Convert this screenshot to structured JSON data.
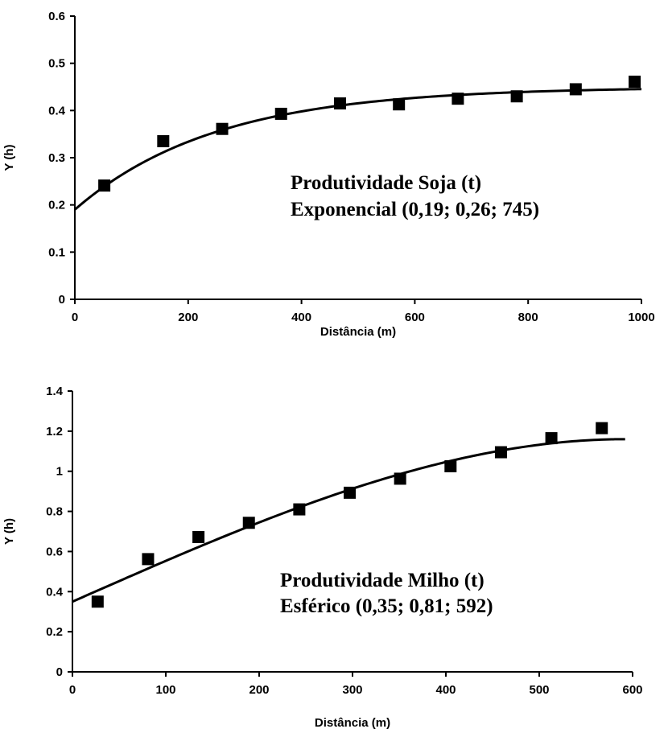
{
  "chart_data": [
    {
      "type": "scatter",
      "xlabel": "Distância (m)",
      "ylabel": "Y (h)",
      "xlim": [
        0,
        1000
      ],
      "ylim": [
        0,
        0.6
      ],
      "xticks": [
        "0",
        "200",
        "400",
        "600",
        "800",
        "1000"
      ],
      "yticks": [
        "0",
        "0.1",
        "0.2",
        "0.3",
        "0.4",
        "0.5",
        "0.6"
      ],
      "grid": false,
      "annotation": [
        "Produtividade Soja (t)",
        "Exponencial (0,19; 0,26; 745)"
      ],
      "points": {
        "x": [
          52,
          156,
          260,
          364,
          468,
          572,
          676,
          780,
          884,
          988
        ],
        "y": [
          0.241,
          0.335,
          0.361,
          0.393,
          0.415,
          0.413,
          0.425,
          0.43,
          0.445,
          0.461
        ]
      },
      "model": {
        "type": "exponential",
        "nugget": 0.19,
        "sill": 0.26,
        "range": 745,
        "x_from": 0,
        "x_to": 1000
      }
    },
    {
      "type": "scatter",
      "xlabel": "Distância (m)",
      "ylabel": "Y (h)",
      "xlim": [
        0,
        600
      ],
      "ylim": [
        0,
        1.4
      ],
      "xticks": [
        "0",
        "100",
        "200",
        "300",
        "400",
        "500",
        "600"
      ],
      "yticks": [
        "0",
        "0.2",
        "0.4",
        "0.6",
        "0.8",
        "1",
        "1.2",
        "1.4"
      ],
      "grid": false,
      "annotation": [
        "Produtividade Milho (t)",
        "Esférico (0,35; 0,81; 592)"
      ],
      "points": {
        "x": [
          27,
          81,
          135,
          189,
          243,
          297,
          351,
          405,
          459,
          513,
          567
        ],
        "y": [
          0.35,
          0.562,
          0.672,
          0.743,
          0.81,
          0.893,
          0.963,
          1.025,
          1.095,
          1.165,
          1.215
        ]
      },
      "model": {
        "type": "spherical",
        "nugget": 0.35,
        "sill": 0.81,
        "range": 592,
        "x_from": 0,
        "x_to": 592
      }
    }
  ]
}
